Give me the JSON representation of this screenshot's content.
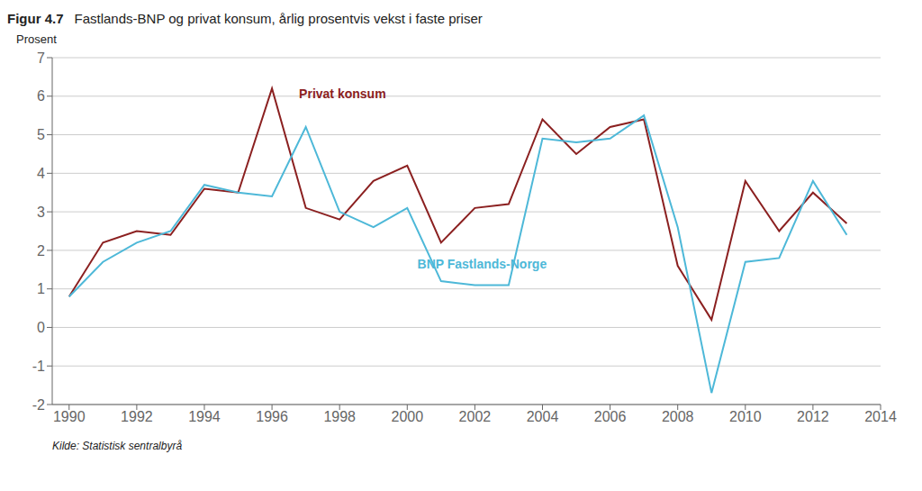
{
  "chart_data": {
    "type": "line",
    "title": "Figur 4.7",
    "subtitle": "Fastlands-BNP og privat konsum, årlig prosentvis vekst i faste priser",
    "ylabel": "Prosent",
    "source": "Kilde: Statistisk sentralbyrå",
    "x": [
      1990,
      1991,
      1992,
      1993,
      1994,
      1995,
      1996,
      1997,
      1998,
      1999,
      2000,
      2001,
      2002,
      2003,
      2004,
      2005,
      2006,
      2007,
      2008,
      2009,
      2010,
      2011,
      2012,
      2013
    ],
    "series": [
      {
        "name": "Privat konsum",
        "color": "#8B2020",
        "values": [
          0.8,
          2.2,
          2.5,
          2.4,
          3.6,
          3.5,
          6.2,
          3.1,
          2.8,
          3.8,
          4.2,
          2.2,
          3.1,
          3.2,
          5.4,
          4.5,
          5.2,
          5.4,
          1.6,
          0.2,
          3.8,
          2.5,
          3.5,
          2.7
        ]
      },
      {
        "name": "BNP Fastlands-Norge",
        "color": "#4db8d8",
        "values": [
          0.8,
          1.7,
          2.2,
          2.5,
          3.7,
          3.5,
          3.4,
          5.2,
          3.0,
          2.6,
          3.1,
          1.2,
          1.1,
          1.1,
          4.9,
          4.8,
          4.9,
          5.5,
          2.6,
          -1.7,
          1.7,
          1.8,
          3.8,
          2.4
        ]
      }
    ],
    "xlim": [
      1989.5,
      2014.0
    ],
    "xticks": [
      1990,
      1992,
      1994,
      1996,
      1998,
      2000,
      2002,
      2004,
      2006,
      2008,
      2010,
      2012,
      2014
    ],
    "ylim": [
      -2,
      7
    ],
    "yticks": [
      -2,
      -1,
      0,
      1,
      2,
      3,
      4,
      5,
      6,
      7
    ],
    "grid": true,
    "annotations": [
      {
        "text": "Privat konsum",
        "x": 1996.8,
        "y": 5.85,
        "color": "#8B2020"
      },
      {
        "text": "BNP Fastlands-Norge",
        "x": 2000.3,
        "y": 1.85,
        "color": "#4db8d8"
      }
    ]
  }
}
